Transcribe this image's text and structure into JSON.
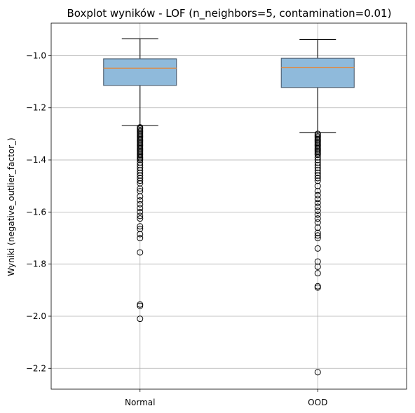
{
  "chart_data": {
    "type": "boxplot",
    "title": "Boxplot wyników - LOF (n_neighbors=5, contamination=0.01)",
    "xlabel": "",
    "ylabel": "Wyniki (negative_outlier_factor_)",
    "ylim": [
      -2.28,
      -0.875
    ],
    "yticks": [
      -1.0,
      -1.2,
      -1.4,
      -1.6,
      -1.8,
      -2.0,
      -2.2
    ],
    "ytick_labels": [
      "−1.0",
      "−1.2",
      "−1.4",
      "−1.6",
      "−1.8",
      "−2.0",
      "−2.2"
    ],
    "grid": true,
    "box_color": "#8fbadb",
    "box_edge_color": "#4c5e70",
    "median_color": "#e0883f",
    "categories": [
      "Normal",
      "OOD"
    ],
    "boxes": [
      {
        "label": "Normal",
        "whisker_high": -0.935,
        "q3": -1.012,
        "median": -1.048,
        "q1": -1.114,
        "whisker_low": -1.268,
        "outliers": [
          -1.275,
          -1.28,
          -1.285,
          -1.29,
          -1.295,
          -1.3,
          -1.305,
          -1.31,
          -1.315,
          -1.32,
          -1.325,
          -1.33,
          -1.335,
          -1.34,
          -1.345,
          -1.35,
          -1.355,
          -1.36,
          -1.365,
          -1.37,
          -1.375,
          -1.38,
          -1.385,
          -1.39,
          -1.395,
          -1.4,
          -1.41,
          -1.42,
          -1.43,
          -1.44,
          -1.45,
          -1.46,
          -1.47,
          -1.48,
          -1.49,
          -1.51,
          -1.52,
          -1.54,
          -1.555,
          -1.57,
          -1.585,
          -1.6,
          -1.615,
          -1.625,
          -1.655,
          -1.665,
          -1.685,
          -1.7,
          -1.755,
          -1.955,
          -1.96,
          -2.01
        ]
      },
      {
        "label": "OOD",
        "whisker_high": -0.938,
        "q3": -1.01,
        "median": -1.046,
        "q1": -1.122,
        "whisker_low": -1.295,
        "outliers": [
          -1.3,
          -1.305,
          -1.31,
          -1.315,
          -1.32,
          -1.325,
          -1.33,
          -1.335,
          -1.34,
          -1.345,
          -1.35,
          -1.355,
          -1.36,
          -1.365,
          -1.37,
          -1.375,
          -1.38,
          -1.39,
          -1.4,
          -1.41,
          -1.42,
          -1.43,
          -1.44,
          -1.45,
          -1.46,
          -1.47,
          -1.48,
          -1.5,
          -1.52,
          -1.535,
          -1.55,
          -1.565,
          -1.58,
          -1.595,
          -1.61,
          -1.625,
          -1.64,
          -1.66,
          -1.68,
          -1.69,
          -1.7,
          -1.74,
          -1.79,
          -1.81,
          -1.835,
          -1.885,
          -1.89,
          -2.215
        ]
      }
    ]
  }
}
